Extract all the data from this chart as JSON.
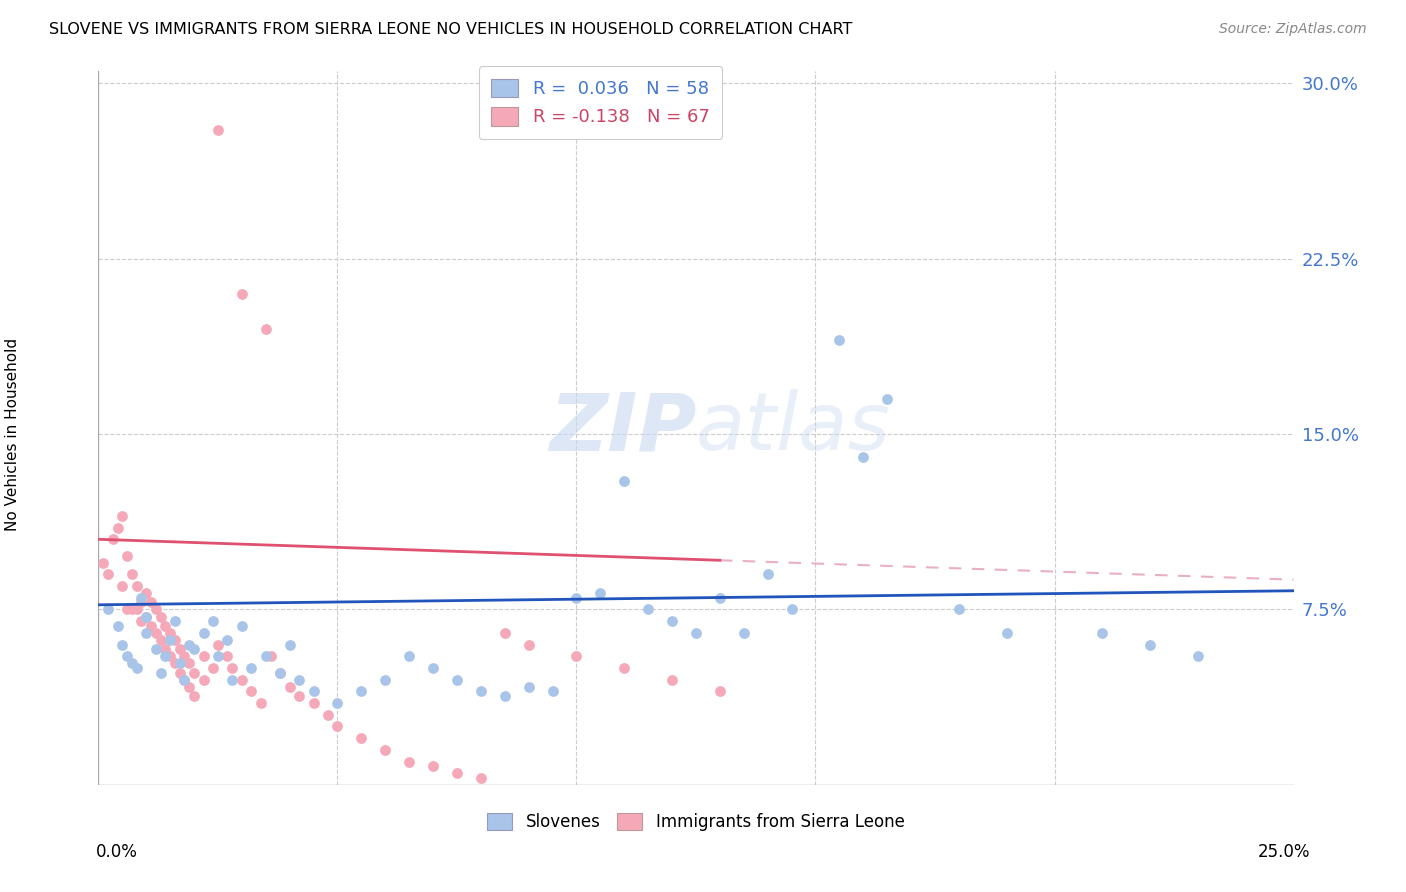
{
  "title": "SLOVENE VS IMMIGRANTS FROM SIERRA LEONE NO VEHICLES IN HOUSEHOLD CORRELATION CHART",
  "source": "Source: ZipAtlas.com",
  "ylabel": "No Vehicles in Household",
  "xmin": 0.0,
  "xmax": 0.25,
  "ymin": 0.0,
  "ymax": 0.305,
  "yticks": [
    0.075,
    0.15,
    0.225,
    0.3
  ],
  "ytick_labels": [
    "7.5%",
    "15.0%",
    "22.5%",
    "30.0%"
  ],
  "legend_line1": "R =  0.036   N = 58",
  "legend_line2": "R = -0.138   N = 67",
  "blue_color": "#a8c4e8",
  "pink_color": "#f4a8b8",
  "trend_blue_color": "#2255bb",
  "trend_pink_solid_color": "#e05070",
  "trend_pink_dash_color": "#e8b0c0",
  "blue_scatter_seed": 7,
  "pink_scatter_seed": 13,
  "slovenes_x": [
    0.002,
    0.004,
    0.005,
    0.006,
    0.007,
    0.008,
    0.009,
    0.01,
    0.01,
    0.012,
    0.013,
    0.014,
    0.015,
    0.016,
    0.017,
    0.018,
    0.019,
    0.02,
    0.022,
    0.024,
    0.025,
    0.027,
    0.028,
    0.03,
    0.032,
    0.035,
    0.038,
    0.04,
    0.042,
    0.045,
    0.05,
    0.055,
    0.06,
    0.065,
    0.07,
    0.075,
    0.08,
    0.085,
    0.09,
    0.095,
    0.1,
    0.105,
    0.11,
    0.115,
    0.12,
    0.125,
    0.13,
    0.135,
    0.14,
    0.145,
    0.155,
    0.16,
    0.165,
    0.18,
    0.19,
    0.21,
    0.22,
    0.23
  ],
  "slovenes_y": [
    0.075,
    0.068,
    0.06,
    0.055,
    0.052,
    0.05,
    0.08,
    0.065,
    0.072,
    0.058,
    0.048,
    0.055,
    0.062,
    0.07,
    0.052,
    0.045,
    0.06,
    0.058,
    0.065,
    0.07,
    0.055,
    0.062,
    0.045,
    0.068,
    0.05,
    0.055,
    0.048,
    0.06,
    0.045,
    0.04,
    0.035,
    0.04,
    0.045,
    0.055,
    0.05,
    0.045,
    0.04,
    0.038,
    0.042,
    0.04,
    0.08,
    0.082,
    0.13,
    0.075,
    0.07,
    0.065,
    0.08,
    0.065,
    0.09,
    0.075,
    0.19,
    0.14,
    0.165,
    0.075,
    0.065,
    0.065,
    0.06,
    0.055
  ],
  "immigrants_x": [
    0.001,
    0.002,
    0.003,
    0.004,
    0.005,
    0.005,
    0.006,
    0.006,
    0.007,
    0.007,
    0.008,
    0.008,
    0.009,
    0.009,
    0.01,
    0.01,
    0.011,
    0.011,
    0.012,
    0.012,
    0.013,
    0.013,
    0.014,
    0.014,
    0.015,
    0.015,
    0.016,
    0.016,
    0.017,
    0.017,
    0.018,
    0.018,
    0.019,
    0.019,
    0.02,
    0.02,
    0.022,
    0.022,
    0.024,
    0.025,
    0.027,
    0.028,
    0.03,
    0.032,
    0.034,
    0.036,
    0.038,
    0.04,
    0.042,
    0.045,
    0.048,
    0.05,
    0.055,
    0.06,
    0.065,
    0.07,
    0.075,
    0.08,
    0.085,
    0.09,
    0.1,
    0.11,
    0.12,
    0.13,
    0.025,
    0.03,
    0.035
  ],
  "immigrants_y": [
    0.095,
    0.09,
    0.105,
    0.11,
    0.115,
    0.085,
    0.098,
    0.075,
    0.09,
    0.075,
    0.085,
    0.075,
    0.078,
    0.07,
    0.082,
    0.072,
    0.078,
    0.068,
    0.075,
    0.065,
    0.072,
    0.062,
    0.068,
    0.058,
    0.065,
    0.055,
    0.062,
    0.052,
    0.058,
    0.048,
    0.055,
    0.045,
    0.052,
    0.042,
    0.048,
    0.038,
    0.055,
    0.045,
    0.05,
    0.06,
    0.055,
    0.05,
    0.045,
    0.04,
    0.035,
    0.055,
    0.048,
    0.042,
    0.038,
    0.035,
    0.03,
    0.025,
    0.02,
    0.015,
    0.01,
    0.008,
    0.005,
    0.003,
    0.065,
    0.06,
    0.055,
    0.05,
    0.045,
    0.04,
    0.28,
    0.21,
    0.195
  ]
}
